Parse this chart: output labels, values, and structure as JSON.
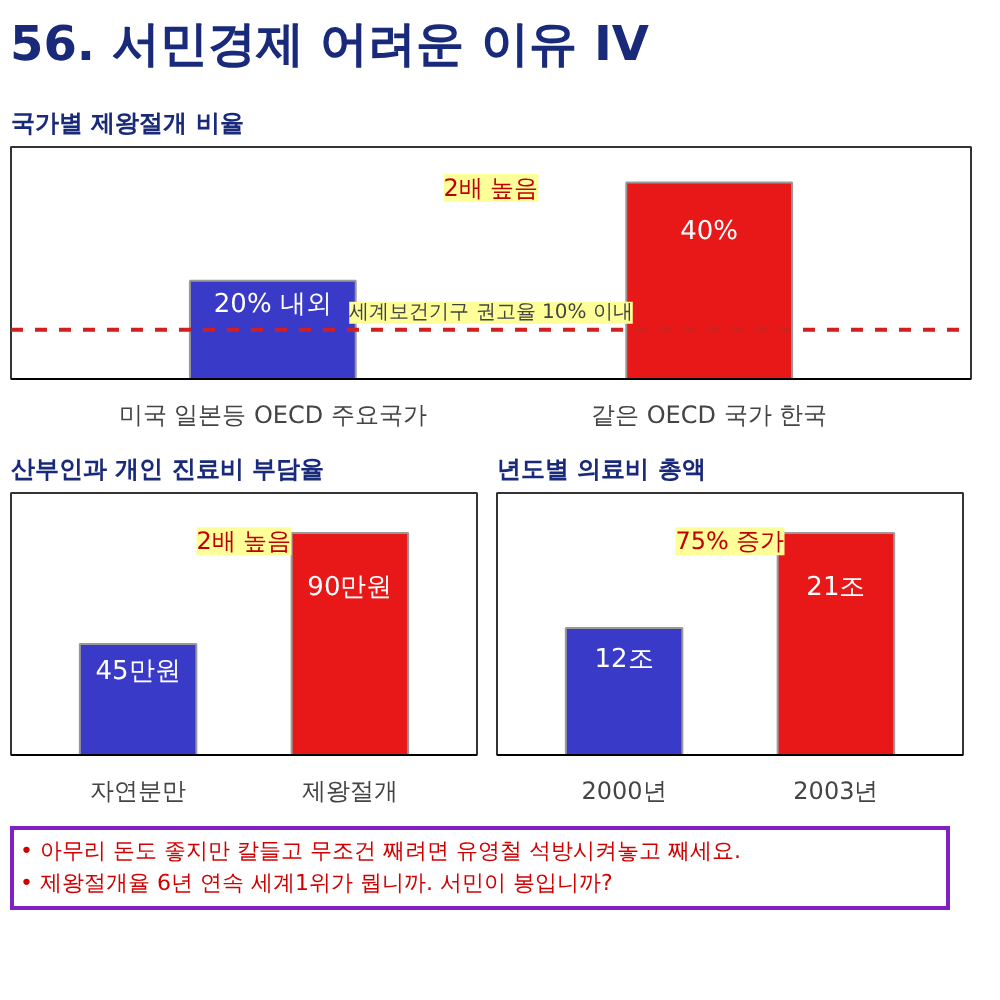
{
  "chart_data": [
    {
      "type": "bar",
      "title": "56. 서민경제 어려운 이유 IV",
      "subtitle": "국가별 제왕절개 비율",
      "categories": [
        "미국 일본등 OECD 주요국가",
        "같은 OECD 국가 한국"
      ],
      "values": [
        20,
        40
      ],
      "value_labels": [
        "20% 내외",
        "40%"
      ],
      "colors": [
        "#3a3ac8",
        "#e81818"
      ],
      "tick_labels": "x",
      "ref_lines": [
        {
          "axis": "y",
          "value": 10,
          "label": "세계보건기구 권고율 10% 이내",
          "color": "#d02020",
          "line_style": "dashed"
        }
      ],
      "annotations": [
        "2배 높음"
      ]
    },
    {
      "type": "bar",
      "title": "산부인과 개인 진료비 부담율",
      "categories": [
        "자연분만",
        "제왕절개"
      ],
      "values": [
        45,
        90
      ],
      "value_labels": [
        "45만원",
        "90만원"
      ],
      "colors": [
        "#3a3ac8",
        "#e81818"
      ],
      "tick_labels": "x",
      "annotations": [
        "2배 높음"
      ]
    },
    {
      "type": "bar",
      "title": "년도별 의료비 총액",
      "categories": [
        "2000년",
        "2003년"
      ],
      "values": [
        12,
        21
      ],
      "value_labels": [
        "12조",
        "21조"
      ],
      "colors": [
        "#3a3ac8",
        "#e81818"
      ],
      "tick_labels": "x",
      "annotations": [
        "75% 증가"
      ]
    },
    {
      "type": "other",
      "annotations": [
        "• 아무리 돈도 좋지만 칼들고 무조건 째려면 유영철 석방시켜놓고 째세요.",
        "• 제왕절개율 6년 연속 세계1위가 뭡니까. 서민이 봉입니까?"
      ]
    }
  ]
}
